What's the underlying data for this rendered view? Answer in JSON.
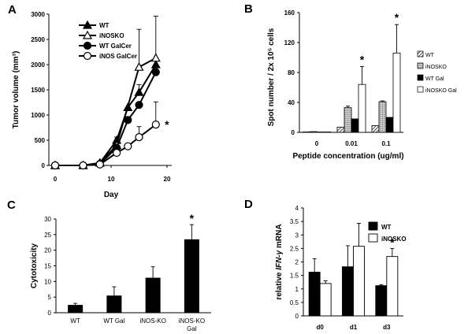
{
  "chart_data": [
    {
      "panel": "A",
      "type": "line",
      "xlabel": "Day",
      "ylabel": "Tumor volume (mm³)",
      "xlim": [
        0,
        20
      ],
      "ylim": [
        0,
        3000
      ],
      "xticks": [
        "0",
        "10",
        "20"
      ],
      "yticks": [
        "0",
        "500",
        "1000",
        "1500",
        "2000",
        "2500",
        "3000"
      ],
      "series": [
        {
          "name": "WT",
          "marker": "filled-triangle",
          "x": [
            0,
            5,
            8,
            11,
            13,
            15,
            18
          ],
          "y": [
            0,
            0,
            50,
            500,
            1150,
            1450,
            2000
          ],
          "err": [
            0,
            0,
            0,
            60,
            0,
            150,
            0
          ]
        },
        {
          "name": "iNOSKO",
          "marker": "open-triangle",
          "x": [
            0,
            5,
            8,
            11,
            15,
            18
          ],
          "y": [
            0,
            0,
            50,
            400,
            1950,
            2130
          ],
          "err": [
            0,
            0,
            0,
            0,
            750,
            830
          ]
        },
        {
          "name": "WT GalCer",
          "marker": "filled-circle",
          "x": [
            0,
            5,
            8,
            11,
            13,
            15,
            18
          ],
          "y": [
            0,
            0,
            30,
            350,
            900,
            1200,
            1850
          ],
          "err": [
            0,
            0,
            0,
            40,
            0,
            0,
            0
          ]
        },
        {
          "name": "iNOS GalCer",
          "marker": "open-circle",
          "x": [
            0,
            5,
            8,
            11,
            13,
            15,
            18
          ],
          "y": [
            0,
            0,
            20,
            250,
            380,
            560,
            810
          ],
          "err": [
            0,
            0,
            0,
            0,
            0,
            210,
            450
          ]
        }
      ],
      "annotations": [
        "*"
      ],
      "legend": "top-left"
    },
    {
      "panel": "B",
      "type": "bar",
      "xlabel": "Peptide concentration (ug/ml)",
      "ylabel": "Spot number / 2x 10⁵ cells",
      "ylim": [
        0,
        160
      ],
      "yticks": [
        "0",
        "40",
        "80",
        "120",
        "160"
      ],
      "categories": [
        "0",
        "0.01",
        "0.1"
      ],
      "series": [
        {
          "name": "WT",
          "pattern": "hatched",
          "values": [
            0.5,
            7,
            9
          ],
          "err": [
            0,
            0,
            0
          ]
        },
        {
          "name": "iNOSKO",
          "pattern": "dotted",
          "values": [
            1,
            33,
            41
          ],
          "err": [
            0,
            2,
            1
          ]
        },
        {
          "name": "WT Gal",
          "pattern": "solid-black",
          "values": [
            0.5,
            18,
            20
          ],
          "err": [
            0,
            0,
            0
          ]
        },
        {
          "name": "iNOSKO Gal",
          "pattern": "white",
          "values": [
            0.5,
            64,
            106
          ],
          "err": [
            0,
            24,
            38
          ]
        }
      ],
      "annotations": [
        "*",
        "*"
      ],
      "legend": "right"
    },
    {
      "panel": "C",
      "type": "bar",
      "xlabel": "",
      "ylabel": "Cytotoxicity",
      "ylim": [
        0,
        30
      ],
      "yticks": [
        "0",
        "5",
        "10",
        "15",
        "20",
        "25",
        "30"
      ],
      "categories": [
        [
          "WT"
        ],
        [
          "WT Gal"
        ],
        [
          "iNOS-KO"
        ],
        [
          "iNOS-KO",
          "Gal"
        ]
      ],
      "values": [
        2.5,
        5.5,
        11.2,
        23.5
      ],
      "err": [
        0.5,
        2.8,
        3.5,
        4.7
      ],
      "annotations": [
        "*"
      ]
    },
    {
      "panel": "D",
      "type": "bar",
      "xlabel": "",
      "ylabel_parts": [
        "relative ",
        "IFN-γ",
        " mRNA"
      ],
      "ylim": [
        0,
        4
      ],
      "yticks": [
        "0",
        "0.5",
        "1",
        "1.5",
        "2",
        "2.5",
        "3",
        "3.5",
        "4"
      ],
      "categories": [
        "d0",
        "d1",
        "d3"
      ],
      "series": [
        {
          "name": "WT",
          "color": "#000000",
          "values": [
            1.62,
            1.82,
            1.12
          ],
          "err": [
            0.5,
            0.78,
            0.04
          ]
        },
        {
          "name": "iNOSKO",
          "color": "#ffffff",
          "values": [
            1.2,
            2.58,
            2.2
          ],
          "err": [
            0.1,
            0.85,
            0.3
          ]
        }
      ],
      "annotations": [
        "*"
      ],
      "legend": "top-right"
    }
  ]
}
